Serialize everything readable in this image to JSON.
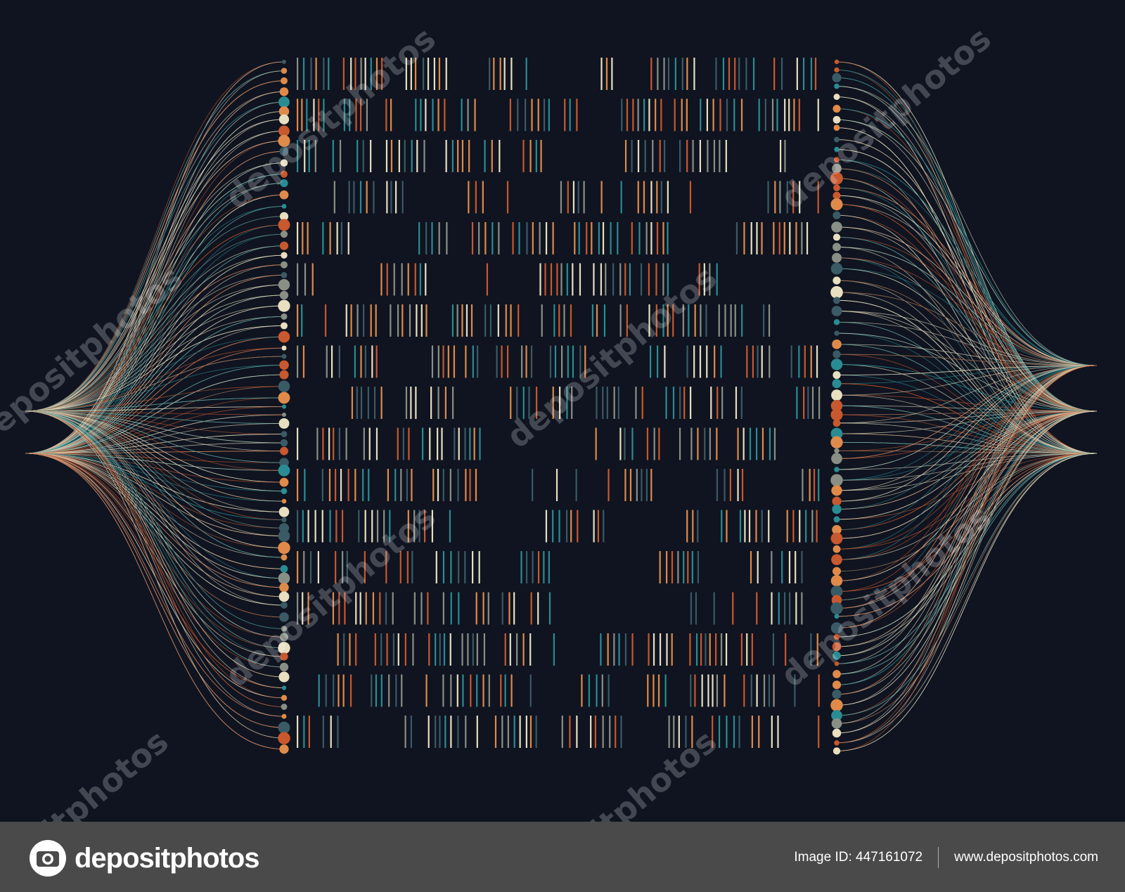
{
  "watermark": "depositphotos",
  "footer": {
    "logo": "depositphotos",
    "image_id": "Image ID: 447161072",
    "url": "www.depositphotos.com"
  }
}
